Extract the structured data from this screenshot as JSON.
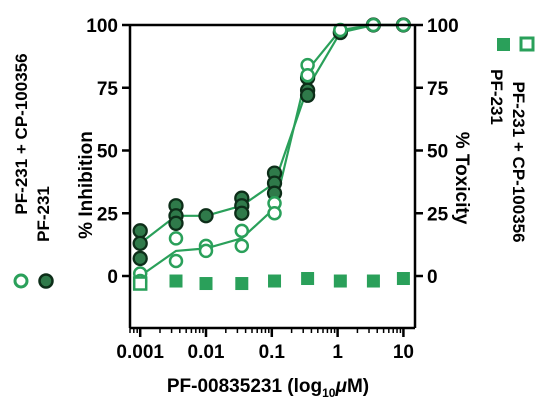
{
  "chart_data": {
    "type": "scatter",
    "title": "",
    "xlabel": "PF-00835231 (log10 μM)",
    "xlabel_parts": {
      "main": "PF-00835231 (log",
      "sub": "10",
      "micro": "μ",
      "unit_end": "M)"
    },
    "ylabel_left": "% Inhibition",
    "ylabel_right": "% Toxicity",
    "x_scale": "log",
    "xlim": [
      0.0007,
      15
    ],
    "ylim": [
      -12,
      100
    ],
    "x_ticks": [
      0.001,
      0.01,
      0.1,
      1,
      10
    ],
    "x_tick_labels": [
      "0.001",
      "0.01",
      "0.1",
      "1",
      "10"
    ],
    "y_ticks": [
      0,
      25,
      50,
      75,
      100
    ],
    "y_tick_labels": [
      "0",
      "25",
      "50",
      "75",
      "100"
    ],
    "legend_left": [
      {
        "label": "PF-231 + CP-100356",
        "marker": "open-circle",
        "color": "#2aa05a"
      },
      {
        "label": "PF-231",
        "marker": "filled-circle",
        "color": "#1e6b3c"
      }
    ],
    "legend_right": [
      {
        "label": "PF-231 + CP-100356",
        "marker": "open-square",
        "color": "#2aa05a"
      },
      {
        "label": "PF-231",
        "marker": "filled-square",
        "color": "#2aa05a"
      }
    ],
    "colors": {
      "combo": "#2aa05a",
      "single": "#1e6b3c",
      "single_fill": "#2f7a4a",
      "line": "#2aa05a"
    },
    "series": [
      {
        "name": "PF-231",
        "kind": "inhibition",
        "marker": "filled-circle",
        "points": [
          {
            "x": 0.001,
            "y": 18
          },
          {
            "x": 0.001,
            "y": 13
          },
          {
            "x": 0.001,
            "y": 7
          },
          {
            "x": 0.0035,
            "y": 28
          },
          {
            "x": 0.0035,
            "y": 24
          },
          {
            "x": 0.0035,
            "y": 21
          },
          {
            "x": 0.01,
            "y": 24
          },
          {
            "x": 0.035,
            "y": 31
          },
          {
            "x": 0.035,
            "y": 28
          },
          {
            "x": 0.035,
            "y": 25
          },
          {
            "x": 0.11,
            "y": 41
          },
          {
            "x": 0.11,
            "y": 37
          },
          {
            "x": 0.11,
            "y": 33
          },
          {
            "x": 0.35,
            "y": 79
          },
          {
            "x": 0.35,
            "y": 74
          },
          {
            "x": 0.35,
            "y": 72
          },
          {
            "x": 1.1,
            "y": 97
          },
          {
            "x": 3.5,
            "y": 100
          },
          {
            "x": 10,
            "y": 100
          }
        ],
        "curve": [
          {
            "x": 0.001,
            "y": 13
          },
          {
            "x": 0.0035,
            "y": 24
          },
          {
            "x": 0.01,
            "y": 24
          },
          {
            "x": 0.035,
            "y": 28
          },
          {
            "x": 0.11,
            "y": 37
          },
          {
            "x": 0.35,
            "y": 75
          },
          {
            "x": 1.1,
            "y": 97
          },
          {
            "x": 3.5,
            "y": 100
          },
          {
            "x": 10,
            "y": 100
          }
        ]
      },
      {
        "name": "PF-231 + CP-100356",
        "kind": "inhibition",
        "marker": "open-circle",
        "points": [
          {
            "x": 0.001,
            "y": 1
          },
          {
            "x": 0.001,
            "y": -2
          },
          {
            "x": 0.0035,
            "y": 15
          },
          {
            "x": 0.0035,
            "y": 6
          },
          {
            "x": 0.01,
            "y": 12
          },
          {
            "x": 0.01,
            "y": 10
          },
          {
            "x": 0.035,
            "y": 18
          },
          {
            "x": 0.035,
            "y": 12
          },
          {
            "x": 0.11,
            "y": 29
          },
          {
            "x": 0.11,
            "y": 25
          },
          {
            "x": 0.35,
            "y": 84
          },
          {
            "x": 0.35,
            "y": 80
          },
          {
            "x": 1.1,
            "y": 98
          },
          {
            "x": 3.5,
            "y": 100
          },
          {
            "x": 10,
            "y": 100
          }
        ],
        "curve": [
          {
            "x": 0.001,
            "y": 0
          },
          {
            "x": 0.0035,
            "y": 10
          },
          {
            "x": 0.01,
            "y": 11
          },
          {
            "x": 0.035,
            "y": 15
          },
          {
            "x": 0.11,
            "y": 27
          },
          {
            "x": 0.35,
            "y": 82
          },
          {
            "x": 1.1,
            "y": 98
          },
          {
            "x": 3.5,
            "y": 100
          },
          {
            "x": 10,
            "y": 100
          }
        ]
      },
      {
        "name": "PF-231 + CP-100356",
        "kind": "toxicity",
        "marker": "open-square",
        "points": [
          {
            "x": 0.001,
            "y": -3
          }
        ]
      },
      {
        "name": "PF-231",
        "kind": "toxicity",
        "marker": "filled-square",
        "points": [
          {
            "x": 0.0035,
            "y": -2
          },
          {
            "x": 0.01,
            "y": -3
          },
          {
            "x": 0.035,
            "y": -3
          },
          {
            "x": 0.11,
            "y": -2
          },
          {
            "x": 0.35,
            "y": -1
          },
          {
            "x": 1.1,
            "y": -2
          },
          {
            "x": 3.5,
            "y": -2
          },
          {
            "x": 10,
            "y": -1
          }
        ]
      }
    ]
  }
}
